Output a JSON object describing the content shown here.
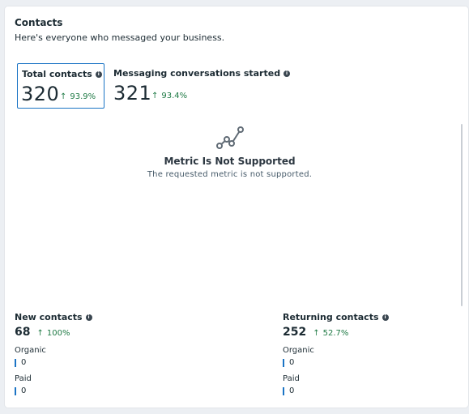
{
  "header": {
    "title": "Contacts",
    "subtitle": "Here's everyone who messaged your business."
  },
  "metrics": [
    {
      "label": "Total contacts",
      "value": "320",
      "change": "93.9%",
      "selected": true
    },
    {
      "label": "Messaging conversations started",
      "value": "321",
      "change": "93.4%",
      "selected": false
    }
  ],
  "empty_state": {
    "icon": "line-chart-icon",
    "title": "Metric Is Not Supported",
    "description": "The requested metric is not supported."
  },
  "sub_metrics": [
    {
      "label": "New contacts",
      "value": "68",
      "change": "100%",
      "breakdown": [
        {
          "label": "Organic",
          "value": "0"
        },
        {
          "label": "Paid",
          "value": "0"
        }
      ]
    },
    {
      "label": "Returning contacts",
      "value": "252",
      "change": "52.7%",
      "breakdown": [
        {
          "label": "Organic",
          "value": "0"
        },
        {
          "label": "Paid",
          "value": "0"
        }
      ]
    }
  ],
  "colors": {
    "accent": "#1b74c5",
    "positive": "#1f7a45",
    "text": "#1c2b33"
  }
}
